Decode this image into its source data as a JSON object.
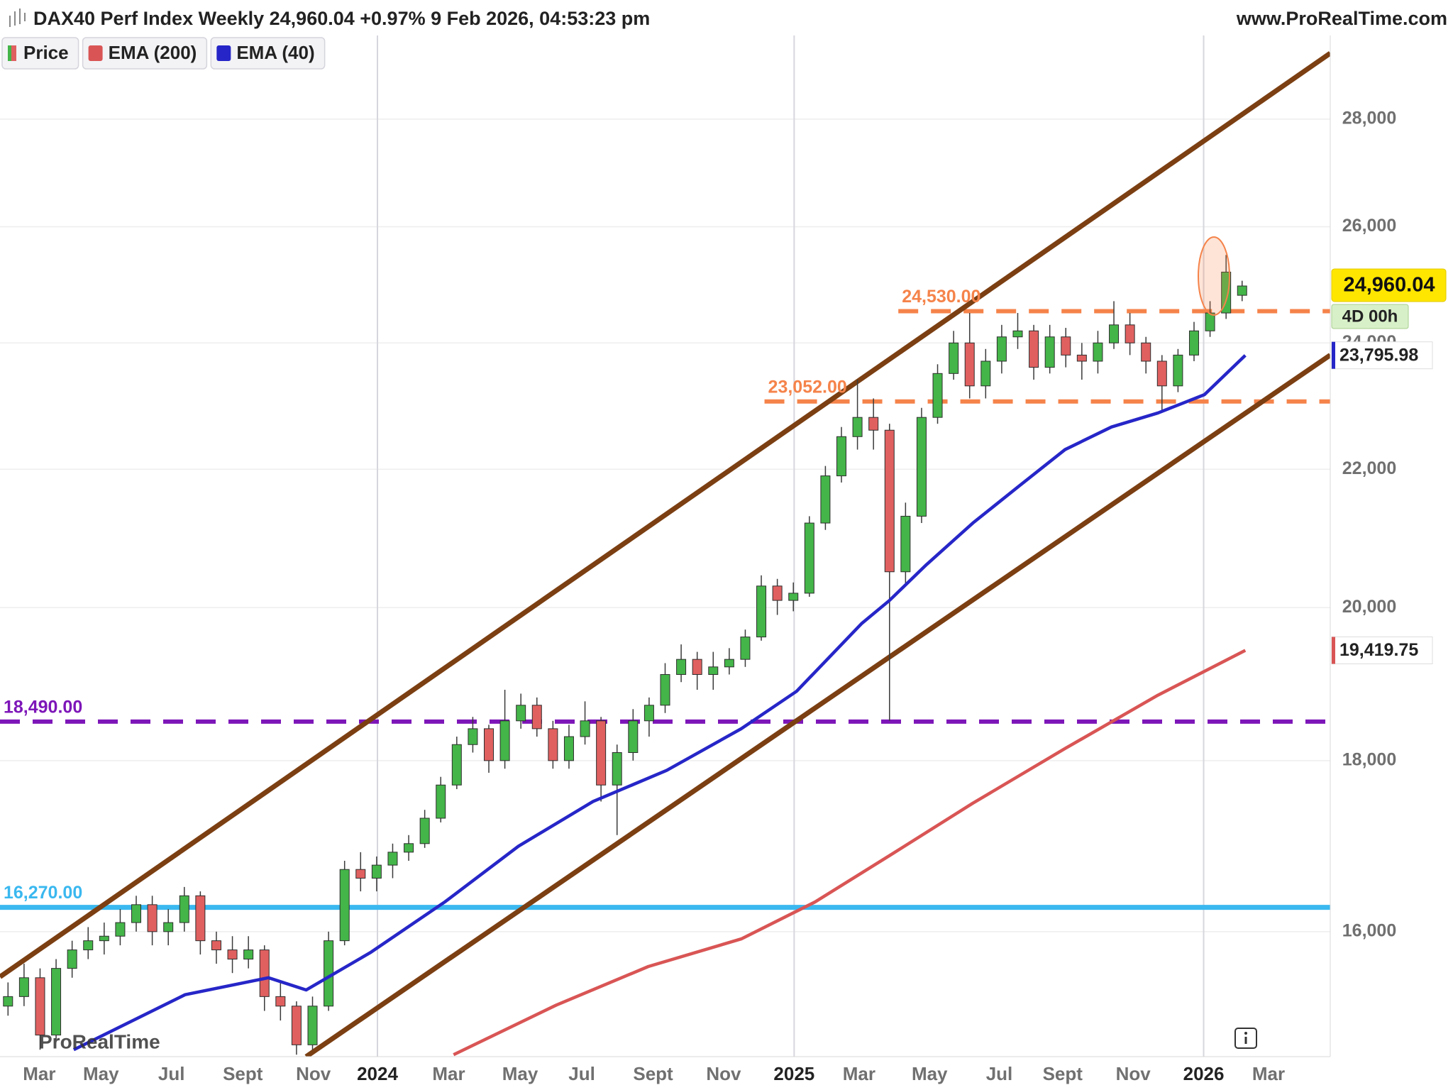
{
  "chart_data": {
    "type": "candlestick",
    "title": "DAX40 Perf Index Weekly 24,960.04 +0.97% 9 Feb 2026, 04:53:23 pm",
    "source": "www.ProRealTime.com",
    "watermark": "ProRealTime",
    "log": true,
    "grid": true,
    "xlim": [
      0,
      166
    ],
    "ylim": [
      14680,
      29660
    ],
    "xticks": [
      {
        "value": 4.9,
        "label": "Mar"
      },
      {
        "value": 12.6,
        "label": "May"
      },
      {
        "value": 21.4,
        "label": "Jul"
      },
      {
        "value": 30.3,
        "label": "Sept"
      },
      {
        "value": 39.1,
        "label": "Nov"
      },
      {
        "value": 47.1,
        "label": "2024"
      },
      {
        "value": 56.0,
        "label": "Mar"
      },
      {
        "value": 64.9,
        "label": "May"
      },
      {
        "value": 72.6,
        "label": "Jul"
      },
      {
        "value": 81.5,
        "label": "Sept"
      },
      {
        "value": 90.3,
        "label": "Nov"
      },
      {
        "value": 99.1,
        "label": "2025"
      },
      {
        "value": 107.2,
        "label": "Mar"
      },
      {
        "value": 116.0,
        "label": "May"
      },
      {
        "value": 124.7,
        "label": "Jul"
      },
      {
        "value": 132.6,
        "label": "Sept"
      },
      {
        "value": 141.4,
        "label": "Nov"
      },
      {
        "value": 150.2,
        "label": "2026"
      },
      {
        "value": 158.3,
        "label": "Mar"
      }
    ],
    "yticks": [
      {
        "value": 16000,
        "label": "16,000"
      },
      {
        "value": 18000,
        "label": "18,000"
      },
      {
        "value": 20000,
        "label": "20,000"
      },
      {
        "value": 22000,
        "label": "22,000"
      },
      {
        "value": 24000,
        "label": "24,000"
      },
      {
        "value": 26000,
        "label": "26,000"
      },
      {
        "value": 28000,
        "label": "28,000"
      }
    ],
    "series": [
      {
        "name": "Price",
        "up_color": "#44b549",
        "down_color": "#e06060",
        "x": [
          1,
          3,
          5,
          7,
          9,
          11,
          13,
          15,
          17,
          19,
          21,
          23,
          25,
          27,
          29,
          31,
          33,
          35,
          37,
          39,
          41,
          43,
          45,
          47,
          49,
          51,
          53,
          55,
          57,
          59,
          61,
          63,
          65,
          67,
          69,
          71,
          73,
          75,
          77,
          79,
          81,
          83,
          85,
          87,
          89,
          91,
          93,
          95,
          97,
          99,
          101,
          103,
          105,
          107,
          109,
          111,
          113,
          115,
          117,
          119,
          121,
          123,
          125,
          127,
          129,
          131,
          133,
          135,
          137,
          139,
          141,
          143,
          145,
          147,
          149,
          151,
          153,
          155
        ],
        "open": [
          15200,
          15300,
          15500,
          14900,
          15600,
          15800,
          15900,
          15950,
          16100,
          16300,
          16000,
          16100,
          16400,
          15900,
          15800,
          15700,
          15800,
          15300,
          15200,
          14800,
          15200,
          15900,
          16700,
          16600,
          16750,
          16900,
          17000,
          17300,
          17700,
          18200,
          18400,
          18000,
          18500,
          18700,
          18400,
          18000,
          18300,
          18500,
          17700,
          18100,
          18500,
          18700,
          19100,
          19300,
          19100,
          19200,
          19300,
          19600,
          20300,
          20100,
          20200,
          21200,
          21900,
          22500,
          22800,
          22600,
          20500,
          21300,
          22800,
          23500,
          24000,
          23300,
          23700,
          24100,
          24200,
          23600,
          24100,
          23800,
          23700,
          24000,
          24300,
          24000,
          23700,
          23300,
          23800,
          24200,
          24500,
          24800
        ],
        "high": [
          15450,
          15650,
          15600,
          15700,
          15900,
          16050,
          16100,
          16250,
          16400,
          16400,
          16250,
          16500,
          16450,
          16000,
          15950,
          15950,
          15850,
          15450,
          15250,
          15300,
          16000,
          16800,
          16900,
          16850,
          17000,
          17100,
          17400,
          17800,
          18300,
          18550,
          18450,
          18900,
          18850,
          18800,
          18500,
          18450,
          18750,
          18550,
          18200,
          18650,
          18800,
          19250,
          19500,
          19400,
          19400,
          19450,
          19700,
          20450,
          20400,
          20350,
          21300,
          22050,
          22650,
          23400,
          23100,
          22700,
          21500,
          22950,
          23650,
          24200,
          24500,
          23900,
          24300,
          24500,
          24300,
          24300,
          24250,
          24000,
          24200,
          24700,
          24500,
          24100,
          23800,
          23900,
          24350,
          24700,
          25500,
          25050
        ],
        "low": [
          15100,
          15200,
          14750,
          14850,
          15500,
          15700,
          15750,
          15850,
          16000,
          15850,
          15850,
          16000,
          15750,
          15650,
          15550,
          15600,
          15150,
          15050,
          14700,
          14750,
          15150,
          15850,
          16450,
          16450,
          16600,
          16800,
          16950,
          17250,
          17650,
          18100,
          17850,
          17900,
          18400,
          18300,
          17900,
          17900,
          18200,
          17500,
          17100,
          18000,
          18300,
          18600,
          19000,
          18900,
          18900,
          19100,
          19200,
          19550,
          19900,
          19950,
          20150,
          21100,
          21800,
          22300,
          22300,
          18500,
          20300,
          21200,
          22700,
          23400,
          23100,
          23100,
          23500,
          23900,
          23400,
          23500,
          23600,
          23400,
          23500,
          23900,
          23800,
          23500,
          22900,
          23200,
          23700,
          24100,
          24400,
          24700
        ],
        "close": [
          15300,
          15500,
          14900,
          15600,
          15800,
          15900,
          15950,
          16100,
          16300,
          16000,
          16100,
          16400,
          15900,
          15800,
          15700,
          15800,
          15300,
          15200,
          14800,
          15200,
          15900,
          16700,
          16600,
          16750,
          16900,
          17000,
          17300,
          17700,
          18200,
          18400,
          18000,
          18500,
          18700,
          18400,
          18000,
          18300,
          18500,
          17700,
          18100,
          18500,
          18700,
          19100,
          19300,
          19100,
          19200,
          19300,
          19600,
          20300,
          20100,
          20200,
          21200,
          21900,
          22500,
          22800,
          22600,
          20500,
          21300,
          22800,
          23500,
          24000,
          23300,
          23700,
          24100,
          24200,
          23600,
          24100,
          23800,
          23700,
          24000,
          24300,
          24000,
          23700,
          23300,
          23800,
          24200,
          24500,
          25200,
          24960
        ]
      },
      {
        "name": "EMA (200)",
        "color": "#d95555",
        "x": [
          56.6,
          69.4,
          80.9,
          92.5,
          101.7,
          111.0,
          121.4,
          132.9,
          144.5,
          155.4
        ],
        "values": [
          14700,
          15210,
          15620,
          15920,
          16330,
          16860,
          17480,
          18150,
          18830,
          19419.75
        ],
        "last_label": "19,419.75"
      },
      {
        "name": "EMA (40)",
        "color": "#2626c8",
        "x": [
          9.2,
          23.1,
          33.5,
          38.2,
          46.2,
          55.5,
          64.7,
          74.0,
          83.2,
          92.5,
          99.4,
          107.5,
          111.0,
          115.6,
          121.4,
          127.2,
          132.9,
          138.7,
          144.5,
          150.3,
          155.4
        ],
        "values": [
          14750,
          15320,
          15500,
          15370,
          15770,
          16330,
          16970,
          17500,
          17880,
          18400,
          18880,
          19780,
          20100,
          20600,
          21200,
          21750,
          22300,
          22650,
          22870,
          23160,
          23795.98
        ],
        "last_label": "23,795.98"
      }
    ],
    "last_price": {
      "value": 24960.04,
      "label": "24,960.04",
      "countdown": "4D 00h"
    },
    "levels": [
      {
        "value": 24530,
        "label": "24,530.00",
        "color": "#f5834a",
        "style": "dashed",
        "x_start": 112.1
      },
      {
        "value": 23052,
        "label": "23,052.00",
        "color": "#f5834a",
        "style": "dashed",
        "x_start": 95.4
      },
      {
        "value": 18490,
        "label": "18,490.00",
        "color": "#7d16b8",
        "style": "dashed"
      },
      {
        "value": 16270,
        "label": "16,270.00",
        "color": "#3ab8ef",
        "style": "solid"
      }
    ],
    "trendlines": [
      {
        "x": [
          0,
          166
        ],
        "y": [
          15510,
          29300
        ],
        "color": "#7b3f12"
      },
      {
        "x": [
          38.2,
          166
        ],
        "y": [
          14680,
          23800
        ],
        "color": "#7b3f12"
      }
    ]
  }
}
